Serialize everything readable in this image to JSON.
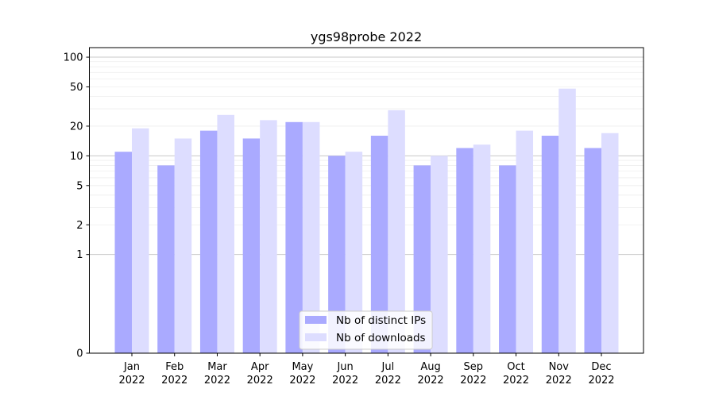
{
  "chart_data": {
    "type": "bar",
    "title": "ygs98probe 2022",
    "xlabel": "",
    "ylabel": "",
    "yscale": "symlog",
    "ylim": [
      0,
      125
    ],
    "ytick_values": [
      0,
      1,
      2,
      5,
      10,
      20,
      50,
      100
    ],
    "ytick_labels": [
      "0",
      "1",
      "2",
      "5",
      "10",
      "20",
      "50",
      "100"
    ],
    "categories": [
      "Jan\n2022",
      "Feb\n2022",
      "Mar\n2022",
      "Apr\n2022",
      "May\n2022",
      "Jun\n2022",
      "Jul\n2022",
      "Aug\n2022",
      "Sep\n2022",
      "Oct\n2022",
      "Nov\n2022",
      "Dec\n2022"
    ],
    "series": [
      {
        "name": "Nb of distinct IPs",
        "color": "#aaaaff",
        "values": [
          11,
          8,
          18,
          15,
          22,
          10,
          16,
          8,
          12,
          8,
          16,
          12
        ]
      },
      {
        "name": "Nb of downloads",
        "color": "#ddddff",
        "values": [
          19,
          15,
          26,
          23,
          22,
          11,
          29,
          10,
          13,
          18,
          48,
          17
        ]
      }
    ],
    "grid": true,
    "legend_position": "lower center"
  }
}
